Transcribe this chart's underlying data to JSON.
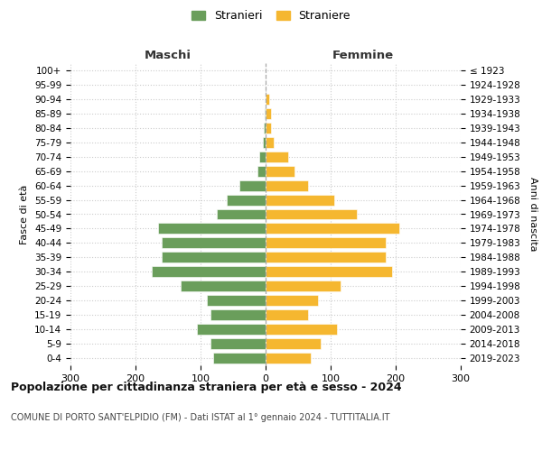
{
  "age_groups": [
    "0-4",
    "5-9",
    "10-14",
    "15-19",
    "20-24",
    "25-29",
    "30-34",
    "35-39",
    "40-44",
    "45-49",
    "50-54",
    "55-59",
    "60-64",
    "65-69",
    "70-74",
    "75-79",
    "80-84",
    "85-89",
    "90-94",
    "95-99",
    "100+"
  ],
  "birth_years": [
    "2019-2023",
    "2014-2018",
    "2009-2013",
    "2004-2008",
    "1999-2003",
    "1994-1998",
    "1989-1993",
    "1984-1988",
    "1979-1983",
    "1974-1978",
    "1969-1973",
    "1964-1968",
    "1959-1963",
    "1954-1958",
    "1949-1953",
    "1944-1948",
    "1939-1943",
    "1934-1938",
    "1929-1933",
    "1924-1928",
    "≤ 1923"
  ],
  "maschi": [
    80,
    85,
    105,
    85,
    90,
    130,
    175,
    160,
    160,
    165,
    75,
    60,
    40,
    13,
    10,
    4,
    3,
    2,
    0,
    0,
    0
  ],
  "femmine": [
    70,
    85,
    110,
    65,
    80,
    115,
    195,
    185,
    185,
    205,
    140,
    105,
    65,
    45,
    35,
    12,
    8,
    8,
    5,
    0,
    0
  ],
  "color_maschi": "#6a9e5b",
  "color_femmine": "#f5b730",
  "title": "Popolazione per cittadinanza straniera per età e sesso - 2024",
  "subtitle": "COMUNE DI PORTO SANT'ELPIDIO (FM) - Dati ISTAT al 1° gennaio 2024 - TUTTITALIA.IT",
  "xlabel_left": "Maschi",
  "xlabel_right": "Femmine",
  "ylabel_left": "Fasce di età",
  "ylabel_right": "Anni di nascita",
  "legend_maschi": "Stranieri",
  "legend_femmine": "Straniere",
  "xlim": 300,
  "background_color": "#ffffff",
  "grid_color": "#cccccc"
}
